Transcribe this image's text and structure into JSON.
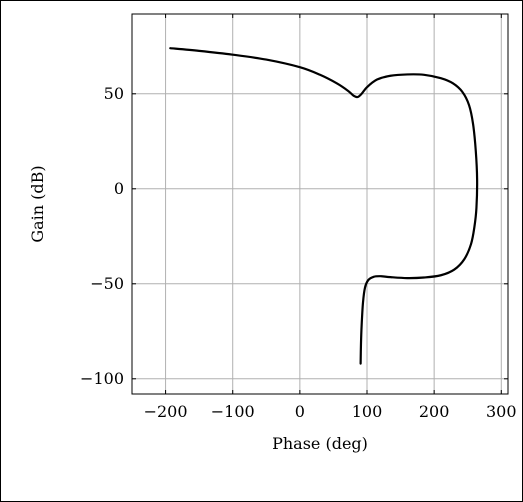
{
  "chart_data": {
    "type": "line",
    "title": "",
    "xlabel": "Phase (deg)",
    "ylabel": "Gain (dB)",
    "xlim": [
      -250,
      310
    ],
    "ylim": [
      -108,
      92
    ],
    "grid": true,
    "x_ticks": [
      -200,
      -100,
      0,
      100,
      200,
      300
    ],
    "y_ticks": [
      -100,
      -50,
      0,
      50
    ],
    "x_tick_labels": [
      "−200",
      "−100",
      "0",
      "100",
      "200",
      "300"
    ],
    "y_tick_labels": [
      "−100",
      "−50",
      "0",
      "50"
    ],
    "series": [
      {
        "points": [
          [
            -193,
            74
          ],
          [
            -150,
            72.6
          ],
          [
            -100,
            70.6
          ],
          [
            -50,
            68
          ],
          [
            0,
            64
          ],
          [
            30,
            60
          ],
          [
            55,
            55.5
          ],
          [
            72,
            51.5
          ],
          [
            80,
            49
          ],
          [
            86,
            48.3
          ],
          [
            92,
            50
          ],
          [
            100,
            53.5
          ],
          [
            115,
            57.5
          ],
          [
            135,
            59.5
          ],
          [
            160,
            60.2
          ],
          [
            185,
            60
          ],
          [
            210,
            58.2
          ],
          [
            228,
            55.5
          ],
          [
            242,
            51
          ],
          [
            252,
            44
          ],
          [
            258,
            34
          ],
          [
            262,
            20
          ],
          [
            264,
            5
          ],
          [
            263,
            -10
          ],
          [
            260,
            -20
          ],
          [
            255,
            -29
          ],
          [
            245,
            -37
          ],
          [
            230,
            -42.5
          ],
          [
            210,
            -45.5
          ],
          [
            185,
            -46.7
          ],
          [
            160,
            -47
          ],
          [
            135,
            -46.5
          ],
          [
            120,
            -46
          ],
          [
            110,
            -46.3
          ],
          [
            102,
            -48
          ],
          [
            97,
            -52
          ],
          [
            94,
            -60
          ],
          [
            92,
            -72
          ],
          [
            91,
            -82
          ],
          [
            90.5,
            -92
          ]
        ]
      }
    ]
  }
}
